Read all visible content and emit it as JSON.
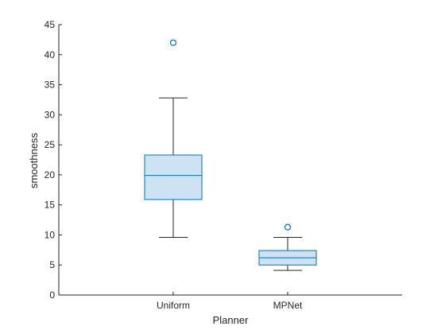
{
  "chart_data": {
    "type": "box",
    "xlabel": "Planner",
    "ylabel": "smoothness",
    "ylim": [
      0,
      45
    ],
    "yticks": [
      0,
      5,
      10,
      15,
      20,
      25,
      30,
      35,
      40,
      45
    ],
    "grid": false,
    "categories": [
      "Uniform",
      "MPNet"
    ],
    "boxes": [
      {
        "category": "Uniform",
        "whisker_low": 9.6,
        "q1": 15.9,
        "median": 19.9,
        "q3": 23.3,
        "whisker_high": 32.8,
        "outliers": [
          42.0
        ]
      },
      {
        "category": "MPNet",
        "whisker_low": 4.1,
        "q1": 5.0,
        "median": 6.2,
        "q3": 7.4,
        "whisker_high": 9.6,
        "outliers": [
          11.3
        ]
      }
    ],
    "colors": {
      "box_fill": "#cde3f3",
      "box_edge": "#0072bd",
      "whisker": "#262626",
      "axis": "#262626"
    }
  }
}
